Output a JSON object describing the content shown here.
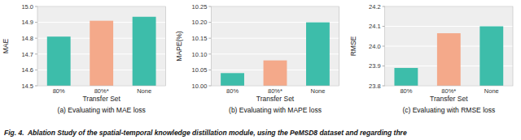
{
  "chart_data": [
    {
      "type": "bar",
      "subtitle": "(a) Evaluating with MAE loss",
      "categories": [
        "80%",
        "80%*",
        "None"
      ],
      "values": [
        14.81,
        14.91,
        14.935
      ],
      "colors": [
        "#3dbdaa",
        "#f4a98a",
        "#3dbdaa"
      ],
      "xlabel": "Transfer Set",
      "ylabel": "MAE",
      "ylim": [
        14.5,
        15.0
      ],
      "yticks": [
        14.5,
        14.6,
        14.7,
        14.8,
        14.9,
        {
          "value": 15.0,
          "label": "15.0"
        }
      ],
      "grid": true
    },
    {
      "type": "bar",
      "subtitle": "(b) Evaluating with MAPE loss",
      "categories": [
        "80%",
        "80%*",
        "None"
      ],
      "values": [
        10.04,
        10.08,
        10.2
      ],
      "colors": [
        "#3dbdaa",
        "#f4a98a",
        "#3dbdaa"
      ],
      "xlabel": "Transfer Set",
      "ylabel": "MAPE(%)",
      "ylim": [
        10.0,
        10.25
      ],
      "yticks": [
        {
          "value": 10.0,
          "label": "10.00"
        },
        10.05,
        {
          "value": 10.1,
          "label": "10.10"
        },
        10.15,
        {
          "value": 10.2,
          "label": "10.20"
        },
        10.25
      ],
      "grid": true
    },
    {
      "type": "bar",
      "subtitle": "(c) Evaluating with RMSE loss",
      "categories": [
        "80%",
        "80%*",
        "None"
      ],
      "values": [
        23.89,
        24.065,
        24.1
      ],
      "colors": [
        "#3dbdaa",
        "#f4a98a",
        "#3dbdaa"
      ],
      "xlabel": "Transfer Set",
      "ylabel": "RMSE",
      "ylim": [
        23.8,
        24.2
      ],
      "yticks": [
        23.8,
        23.9,
        {
          "value": 24.0,
          "label": "24.0"
        },
        24.1,
        24.2
      ],
      "grid": true
    }
  ],
  "caption": "Fig. 4.  Ablation Study of the spatial-temporal knowledge distillation module, using the PeMSD8 dataset and regarding thre"
}
